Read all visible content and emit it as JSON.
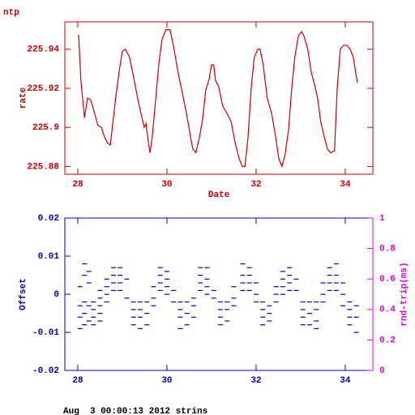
{
  "chart_data": [
    {
      "type": "line",
      "title": "ntp",
      "x_label": "Date",
      "y_label": "rate",
      "color": "#cc0000",
      "axis_color": "#cc0000",
      "xlim": [
        27.71,
        34.62
      ],
      "xticks": [
        28,
        30,
        32,
        34
      ],
      "ylim": [
        225.876,
        225.954
      ],
      "yticks": [
        225.88,
        225.9,
        225.92,
        225.94
      ],
      "x": [
        28.0,
        28.02,
        28.07,
        28.15,
        28.22,
        28.29,
        28.38,
        28.45,
        28.53,
        28.6,
        28.67,
        28.73,
        28.78,
        28.85,
        28.93,
        29.0,
        29.07,
        29.16,
        29.25,
        29.35,
        29.44,
        29.49,
        29.53,
        29.58,
        29.62,
        29.67,
        29.75,
        29.82,
        29.89,
        29.98,
        30.07,
        30.16,
        30.25,
        30.35,
        30.44,
        30.53,
        30.58,
        30.65,
        30.73,
        30.8,
        30.87,
        30.95,
        31.0,
        31.05,
        31.09,
        31.16,
        31.25,
        31.35,
        31.44,
        31.53,
        31.62,
        31.69,
        31.75,
        31.82,
        31.89,
        31.96,
        32.04,
        32.09,
        32.16,
        32.25,
        32.35,
        32.44,
        32.51,
        32.58,
        32.65,
        32.73,
        32.8,
        32.87,
        32.95,
        33.02,
        33.07,
        33.16,
        33.24,
        33.31,
        33.38,
        33.45,
        33.53,
        33.6,
        33.67,
        33.76,
        33.82,
        33.89,
        33.96,
        34.04,
        34.11,
        34.18,
        34.27
      ],
      "values": [
        225.947,
        225.947,
        225.924,
        225.905,
        225.915,
        225.914,
        225.907,
        225.901,
        225.9,
        225.895,
        225.892,
        225.891,
        225.901,
        225.915,
        225.929,
        225.939,
        225.94,
        225.936,
        225.926,
        225.914,
        225.905,
        225.9,
        225.902,
        225.893,
        225.887,
        225.895,
        225.915,
        225.933,
        225.945,
        225.95,
        225.95,
        225.94,
        225.928,
        225.917,
        225.907,
        225.895,
        225.889,
        225.887,
        225.895,
        225.904,
        225.919,
        225.925,
        225.932,
        225.932,
        225.924,
        225.921,
        225.911,
        225.907,
        225.903,
        225.892,
        225.884,
        225.88,
        225.88,
        225.895,
        225.92,
        225.936,
        225.94,
        225.94,
        225.932,
        225.915,
        225.907,
        225.895,
        225.884,
        225.88,
        225.886,
        225.899,
        225.92,
        225.936,
        225.947,
        225.949,
        225.947,
        225.94,
        225.928,
        225.922,
        225.915,
        225.903,
        225.895,
        225.889,
        225.887,
        225.888,
        225.92,
        225.94,
        225.942,
        225.942,
        225.94,
        225.936,
        225.923
      ]
    },
    {
      "type": "scatter",
      "y_label": "Offset",
      "y2_label": "rnd-trip(ms)",
      "color": "#0000cc",
      "axis_color": "#0000cc",
      "y2_color": "#e000e0",
      "xlim": [
        27.71,
        34.62
      ],
      "xticks": [
        28,
        30,
        32,
        34
      ],
      "ylim": [
        -0.02,
        0.02
      ],
      "yticks": [
        -0.02,
        -0.01,
        0,
        0.01,
        0.02
      ],
      "y2lim": [
        0,
        1
      ],
      "y2ticks": [
        0,
        0.2,
        0.4,
        0.6,
        0.8,
        1
      ],
      "x": [
        28.05,
        28.05,
        28.05,
        28.05,
        28.15,
        28.15,
        28.15,
        28.15,
        28.15,
        28.25,
        28.25,
        28.25,
        28.25,
        28.35,
        28.35,
        28.35,
        28.35,
        28.5,
        28.5,
        28.5,
        28.5,
        28.5,
        28.65,
        28.65,
        28.65,
        28.65,
        28.8,
        28.8,
        28.8,
        28.8,
        28.95,
        28.95,
        28.95,
        28.95,
        29.1,
        29.1,
        29.25,
        29.25,
        29.25,
        29.25,
        29.4,
        29.4,
        29.4,
        29.4,
        29.55,
        29.55,
        29.55,
        29.7,
        29.7,
        29.7,
        29.85,
        29.85,
        29.85,
        29.85,
        30.0,
        30.0,
        30.0,
        30.0,
        30.15,
        30.15,
        30.3,
        30.3,
        30.3,
        30.3,
        30.45,
        30.45,
        30.45,
        30.6,
        30.6,
        30.6,
        30.75,
        30.75,
        30.75,
        30.75,
        30.9,
        30.9,
        30.9,
        30.9,
        31.05,
        31.05,
        31.2,
        31.2,
        31.2,
        31.2,
        31.35,
        31.35,
        31.35,
        31.5,
        31.5,
        31.5,
        31.7,
        31.7,
        31.7,
        31.7,
        31.85,
        31.85,
        31.85,
        31.85,
        32.0,
        32.0,
        32.0,
        32.15,
        32.15,
        32.15,
        32.15,
        32.3,
        32.3,
        32.3,
        32.45,
        32.45,
        32.45,
        32.6,
        32.6,
        32.6,
        32.6,
        32.75,
        32.75,
        32.75,
        32.75,
        32.9,
        32.9,
        33.05,
        33.05,
        33.05,
        33.05,
        33.2,
        33.2,
        33.2,
        33.35,
        33.35,
        33.35,
        33.35,
        33.5,
        33.5,
        33.5,
        33.65,
        33.65,
        33.65,
        33.65,
        33.8,
        33.8,
        33.8,
        33.8,
        33.95,
        33.95,
        33.95,
        34.1,
        34.1,
        34.1,
        34.1,
        34.25,
        34.25,
        34.25
      ],
      "values": [
        -0.003,
        -0.006,
        -0.009,
        0.002,
        0.008,
        0.005,
        -0.002,
        -0.005,
        -0.008,
        0.006,
        0.003,
        -0.003,
        -0.007,
        -0.002,
        -0.004,
        -0.006,
        -0.008,
        0.001,
        -0.001,
        -0.003,
        -0.005,
        -0.007,
        0.004,
        0.002,
        0,
        -0.002,
        0.007,
        0.005,
        0.003,
        0.001,
        0.007,
        0.005,
        0.003,
        0.001,
        0.004,
        -0.001,
        -0.002,
        -0.004,
        -0.006,
        -0.008,
        -0.002,
        -0.004,
        -0.006,
        -0.009,
        -0.002,
        -0.005,
        -0.008,
        0.002,
        -0.001,
        -0.003,
        0.007,
        0.005,
        0.003,
        0.001,
        0.006,
        0.004,
        0.002,
        0,
        0.001,
        -0.002,
        -0.002,
        -0.004,
        -0.006,
        -0.009,
        -0.002,
        -0.005,
        -0.008,
        -0.001,
        -0.003,
        -0.006,
        0.007,
        0.005,
        0.003,
        0.001,
        0.007,
        0.004,
        0.002,
        0,
        0.001,
        -0.001,
        -0.002,
        -0.004,
        -0.006,
        -0.008,
        -0.002,
        -0.004,
        -0.007,
        0.002,
        -0.001,
        -0.003,
        0.008,
        0.005,
        0.003,
        0.001,
        0.007,
        0.005,
        0.003,
        0.001,
        0.003,
        0,
        -0.002,
        -0.002,
        -0.004,
        -0.006,
        -0.008,
        -0.003,
        -0.005,
        -0.007,
        0.002,
        0,
        -0.002,
        0.006,
        0.004,
        0.002,
        0,
        0.007,
        0.005,
        0.003,
        0.001,
        0.004,
        0.001,
        -0.002,
        -0.004,
        -0.006,
        -0.008,
        -0.002,
        -0.005,
        -0.008,
        -0.002,
        -0.004,
        -0.007,
        -0.009,
        0.003,
        0,
        -0.002,
        0.007,
        0.005,
        0.003,
        0.001,
        0.008,
        0.005,
        0.003,
        0.001,
        0.003,
        0,
        -0.003,
        -0.002,
        -0.004,
        -0.006,
        -0.008,
        -0.003,
        -0.006,
        -0.01
      ]
    }
  ],
  "footer": "Aug  3 00:00:13 2012 strins"
}
